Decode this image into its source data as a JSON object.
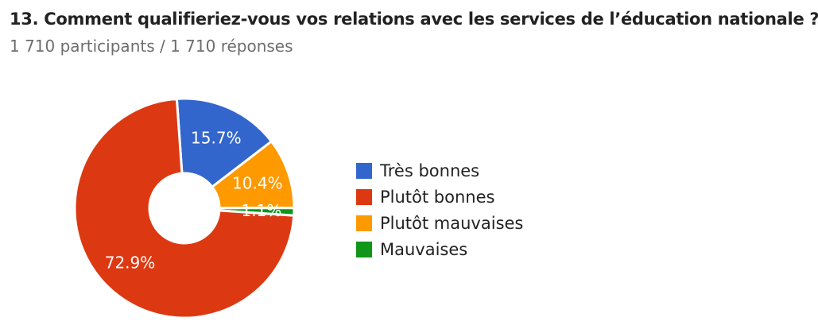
{
  "question": {
    "title": "13. Comment qualifieriez-vous vos relations avec les services de l’éducation nationale ?",
    "subtitle": "1 710 participants / 1 710 réponses"
  },
  "chart_data": {
    "type": "pie",
    "donut": true,
    "legend_position": "right",
    "slices": [
      {
        "label": "Très bonnes",
        "value": 15.7,
        "display": "15.7%",
        "color": "#3366cc"
      },
      {
        "label": "Plutôt mauvaises",
        "value": 10.4,
        "display": "10.4%",
        "color": "#ff9900"
      },
      {
        "label": "Mauvaises",
        "value": 1.1,
        "display": "1.1%",
        "color": "#109618"
      },
      {
        "label": "Plutôt bonnes",
        "value": 72.9,
        "display": "72.9%",
        "color": "#dc3912"
      }
    ],
    "legend": [
      {
        "label": "Très bonnes",
        "color": "#3366cc"
      },
      {
        "label": "Plutôt bonnes",
        "color": "#dc3912"
      },
      {
        "label": "Plutôt mauvaises",
        "color": "#ff9900"
      },
      {
        "label": "Mauvaises",
        "color": "#109618"
      }
    ]
  }
}
